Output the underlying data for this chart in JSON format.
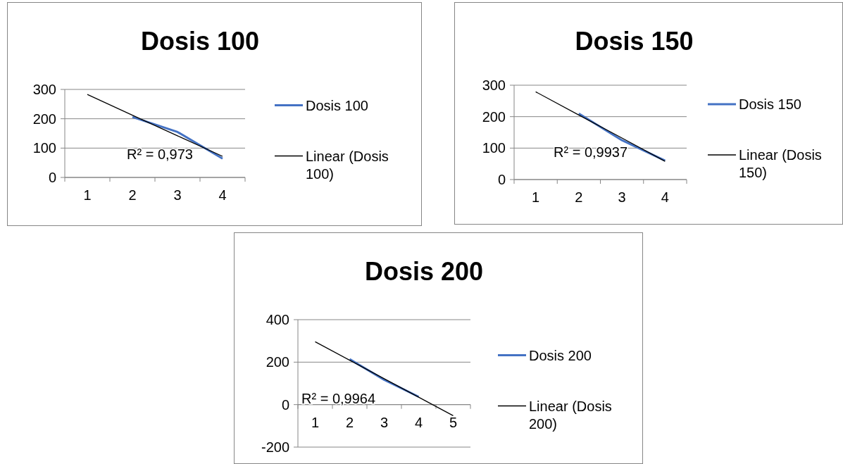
{
  "chart_data": [
    {
      "type": "line",
      "title": "Dosis 100",
      "categories": [
        "1",
        "2",
        "3",
        "4"
      ],
      "series": [
        {
          "name": "Dosis 100",
          "color": "#4472c4",
          "values": [
            null,
            206,
            155,
            64
          ]
        },
        {
          "name": "Linear (Dosis 100)",
          "color": "#000000",
          "values": [
            283,
            212,
            142,
            72
          ]
        }
      ],
      "ylim": [
        0,
        300
      ],
      "yticks": [
        0,
        100,
        200,
        300
      ],
      "grid": "y",
      "legend": "right",
      "annotations": [
        "R² = 0,973"
      ]
    },
    {
      "type": "line",
      "title": "Dosis 150",
      "categories": [
        "1",
        "2",
        "3",
        "4"
      ],
      "series": [
        {
          "name": "Dosis 150",
          "color": "#4472c4",
          "values": [
            null,
            210,
            125,
            60
          ]
        },
        {
          "name": "Linear (Dosis 150)",
          "color": "#000000",
          "values": [
            279,
            205,
            132,
            58
          ]
        }
      ],
      "ylim": [
        0,
        300
      ],
      "yticks": [
        0,
        100,
        200,
        300
      ],
      "grid": "y",
      "legend": "right",
      "annotations": [
        "R² = 0,9937"
      ]
    },
    {
      "type": "line",
      "title": "Dosis 200",
      "categories": [
        "1",
        "2",
        "3",
        "4",
        "5"
      ],
      "series": [
        {
          "name": "Dosis 200",
          "color": "#4472c4",
          "values": [
            null,
            214,
            117,
            37,
            null
          ]
        },
        {
          "name": "Linear (Dosis 200)",
          "color": "#000000",
          "values": [
            296,
            209,
            122,
            35,
            -52
          ]
        }
      ],
      "ylim": [
        -200,
        400
      ],
      "yticks": [
        -200,
        0,
        200,
        400
      ],
      "grid": "y",
      "legend": "right",
      "annotations": [
        "R² = 0,9964"
      ]
    }
  ]
}
